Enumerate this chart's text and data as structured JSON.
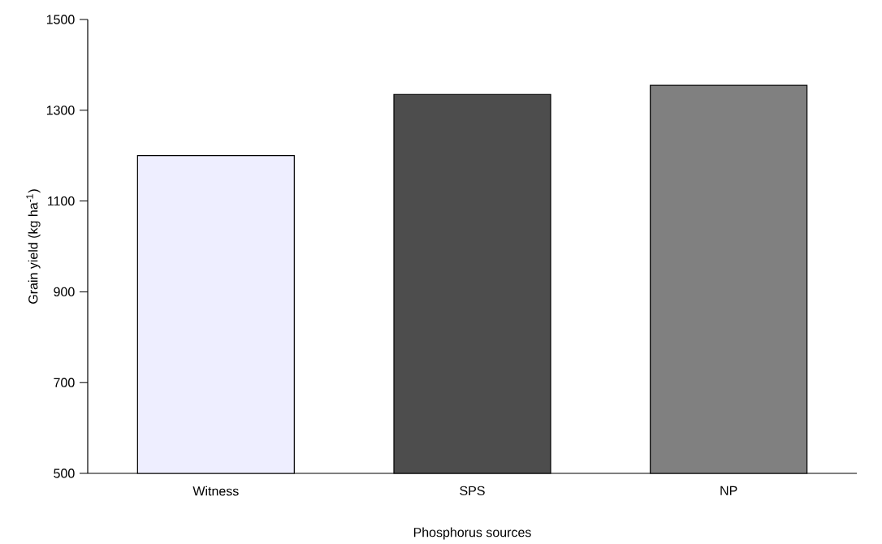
{
  "chart_data": {
    "type": "bar",
    "xlabel": "Phosphorus sources",
    "ylabel": "Grain yield (kg ha$^{-1}$)",
    "categories": [
      "Witness",
      "SPS",
      "NP"
    ],
    "values": [
      1200,
      1335,
      1355
    ],
    "colors": [
      "#eeeeff",
      "#4d4d4d",
      "#808080"
    ],
    "ylim": [
      500,
      1500
    ],
    "yticks": [
      500,
      700,
      900,
      1100,
      1300,
      1500
    ],
    "grid": false
  }
}
